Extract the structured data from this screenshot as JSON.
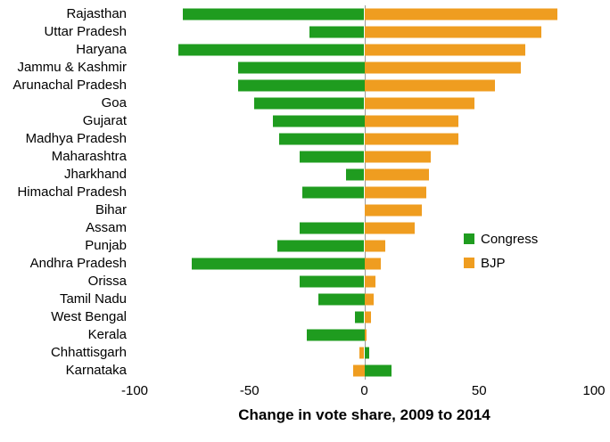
{
  "chart_data": {
    "type": "bar",
    "orientation": "horizontal",
    "title": "",
    "xlabel": "Change in vote share, 2009 to 2014",
    "ylabel": "",
    "xlim": [
      -100,
      100
    ],
    "xticks": [
      -100,
      -50,
      0,
      50,
      100
    ],
    "grid": false,
    "legend_position": "middle-right",
    "categories": [
      "Rajasthan",
      "Uttar Pradesh",
      "Haryana",
      "Jammu & Kashmir",
      "Arunachal Pradesh",
      "Goa",
      "Gujarat",
      "Madhya Pradesh",
      "Maharashtra",
      "Jharkhand",
      "Himachal Pradesh",
      "Bihar",
      "Assam",
      "Punjab",
      "Andhra Pradesh",
      "Orissa",
      "Tamil Nadu",
      "West Bengal",
      "Kerala",
      "Chhattisgarh",
      "Karnataka"
    ],
    "series": [
      {
        "name": "Congress",
        "color": "#1f9c1f",
        "values": [
          -79,
          -24,
          -81,
          -55,
          -55,
          -48,
          -40,
          -37,
          -28,
          -8,
          -27,
          0,
          -28,
          -38,
          -75,
          -28,
          -20,
          -4,
          -25,
          2,
          12
        ]
      },
      {
        "name": "BJP",
        "color": "#ef9d20",
        "values": [
          84,
          77,
          70,
          68,
          57,
          48,
          41,
          41,
          29,
          28,
          27,
          25,
          22,
          9,
          7,
          5,
          4,
          3,
          1,
          -2,
          -5
        ]
      }
    ]
  }
}
